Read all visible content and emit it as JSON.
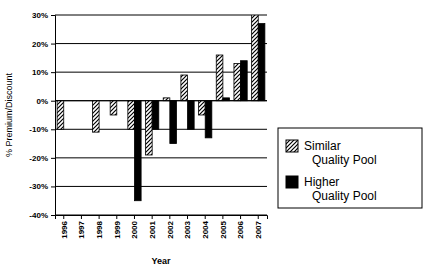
{
  "chart_data": {
    "type": "bar",
    "x_label": "Year",
    "y_label": "% Premium/Discount",
    "categories": [
      "1996",
      "1997",
      "1998",
      "1999",
      "2000",
      "2001",
      "2002",
      "2003",
      "2004",
      "2005",
      "2006",
      "2007"
    ],
    "series": [
      {
        "name": "Similar Quality Pool",
        "color": "#000000",
        "values": [
          -10,
          0,
          -11,
          -5,
          -10,
          -19,
          1,
          9,
          -5,
          16,
          13,
          30
        ]
      },
      {
        "name": "Higher Quality Pool",
        "color": "#000000",
        "values": [
          0,
          0,
          0,
          0,
          -35,
          -10,
          -15,
          -10,
          -13,
          1,
          14,
          27
        ]
      }
    ],
    "ylim": [
      -40,
      30
    ],
    "yticks": [
      {
        "value": -40,
        "label": "-40%"
      },
      {
        "value": -30,
        "label": "-30%"
      },
      {
        "value": -20,
        "label": "-20%"
      },
      {
        "value": -10,
        "label": "-10%"
      },
      {
        "value": 0,
        "label": "0%"
      },
      {
        "value": 10,
        "label": "10%"
      },
      {
        "value": 20,
        "label": "20%"
      },
      {
        "value": 30,
        "label": "30%"
      }
    ],
    "grid": true,
    "legend": "right"
  }
}
